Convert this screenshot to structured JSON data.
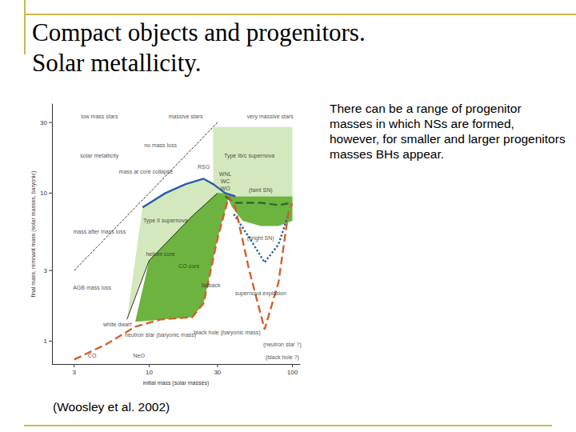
{
  "chart_data": {
    "type": "line",
    "title": "Compact objects and progenitors.\nSolar metallicity.",
    "subtitle": "There can be a range of progenitor masses in which NSs are formed, however, for smaller and larger progenitors masses BHs appear.",
    "source": "(Woosley et al. 2002)",
    "xlabel": "initial mass (solar masses)",
    "ylabel": "final mass, remnant mass (solar masses, baryonic)",
    "log": true,
    "grid": false,
    "xlim": [
      2.1,
      113
    ],
    "ylim": [
      0.7,
      40
    ],
    "xticks": [
      3,
      10,
      30,
      100
    ],
    "yticks": [
      1,
      3,
      10,
      30
    ],
    "series": [
      {
        "type": "area",
        "color": "#d3e8bd",
        "x": [
          7,
          10,
          20,
          30,
          34,
          28,
          24,
          18,
          13,
          9
        ],
        "values": [
          1.4,
          3.5,
          7,
          10,
          10,
          11.5,
          12.5,
          11.5,
          10,
          8
        ]
      },
      {
        "type": "area",
        "color": "#d3e8bd",
        "x": [
          28,
          34,
          40,
          100,
          100,
          28
        ],
        "values": [
          11.5,
          10,
          9.5,
          9.5,
          28,
          28
        ]
      },
      {
        "type": "area",
        "color": "#6db33f",
        "x": [
          8,
          20,
          24,
          30,
          36,
          34,
          30,
          20,
          10
        ],
        "values": [
          1.35,
          1.45,
          1.8,
          4.9,
          9.5,
          10,
          10,
          7,
          3.5
        ]
      },
      {
        "type": "area",
        "color": "#6db33f",
        "x": [
          34,
          40,
          60,
          80,
          100,
          100,
          80,
          60,
          45,
          38
        ],
        "values": [
          10,
          9.5,
          9.5,
          9.5,
          9.5,
          6.5,
          6,
          6,
          6.5,
          8
        ]
      },
      {
        "type": "line",
        "color": "#000000",
        "line_style": "dashed",
        "x": [
          3,
          30
        ],
        "values": [
          3,
          30
        ]
      },
      {
        "type": "line",
        "color": "#000000",
        "line_style": "solid",
        "x": [
          7,
          10,
          20,
          30
        ],
        "values": [
          1.4,
          3.5,
          7,
          10
        ]
      },
      {
        "type": "line",
        "color": "#2a5ea8",
        "line_style": "solid",
        "x": [
          9,
          13,
          18,
          24,
          28,
          34,
          40
        ],
        "values": [
          8,
          10,
          11.5,
          12.5,
          11.5,
          10,
          9.5
        ]
      },
      {
        "type": "line",
        "color": "#2e6b2e",
        "line_style": "dashed",
        "x": [
          34,
          40,
          60,
          80,
          100
        ],
        "values": [
          9.5,
          8.6,
          8.6,
          8.3,
          8.6
        ]
      },
      {
        "type": "line",
        "color": "#2a5ea8",
        "line_style": "dotted",
        "x": [
          39,
          50,
          64,
          80,
          94
        ],
        "values": [
          7.2,
          5,
          3.4,
          4.5,
          7.2
        ]
      },
      {
        "type": "line",
        "color": "#d2602a",
        "line_style": "dashed",
        "x": [
          3,
          5,
          8,
          12,
          20,
          24,
          30,
          36,
          40,
          50,
          64,
          80,
          94,
          100
        ],
        "values": [
          0.75,
          0.95,
          1.25,
          1.4,
          1.45,
          1.8,
          4.9,
          9.5,
          8,
          3,
          1.2,
          2.5,
          7.5,
          8.5
        ]
      }
    ],
    "annotations": [
      {
        "text": "low mass stars",
        "x": 4.5,
        "y": 33
      },
      {
        "text": "massive stars",
        "x": 18,
        "y": 33
      },
      {
        "text": "very massive stars",
        "x": 70,
        "y": 33
      },
      {
        "text": "solar metallicity",
        "x": 4.5,
        "y": 18
      },
      {
        "text": "Type Ib/c supernova",
        "x": 50,
        "y": 18
      },
      {
        "text": "no mass loss",
        "x": 12,
        "y": 21
      },
      {
        "text": "RSG",
        "x": 24,
        "y": 15
      },
      {
        "text": "mass at core collapse",
        "x": 9.5,
        "y": 14
      },
      {
        "text": "mass after mass loss",
        "x": 4.5,
        "y": 5.5
      },
      {
        "text": "Type II supernova",
        "x": 13,
        "y": 6.5
      },
      {
        "text": "AGB mass loss",
        "x": 4,
        "y": 2.3
      },
      {
        "text": "helium core",
        "x": 12,
        "y": 3.9
      },
      {
        "text": "CO core",
        "x": 19,
        "y": 3.2
      },
      {
        "text": "fallback",
        "x": 27,
        "y": 2.4
      },
      {
        "text": "neutron star (baryonic mass)",
        "x": 12,
        "y": 1.1
      },
      {
        "text": "black hole (baryonic mass)",
        "x": 35,
        "y": 1.15
      },
      {
        "text": "white dwarf",
        "x": 6,
        "y": 1.3
      },
      {
        "text": "CO",
        "x": 4,
        "y": 0.8
      },
      {
        "text": "NeO",
        "x": 8.5,
        "y": 0.8
      },
      {
        "text": "WNL",
        "x": 34,
        "y": 13.5
      },
      {
        "text": "WC",
        "x": 34,
        "y": 12
      },
      {
        "text": "WO",
        "x": 34,
        "y": 10.7
      },
      {
        "text": "(faint SN)",
        "x": 60,
        "y": 10.5
      },
      {
        "text": "(bright SN)",
        "x": 60,
        "y": 5
      },
      {
        "text": "supernova explosion",
        "x": 60,
        "y": 2.1
      },
      {
        "text": "(neutron star ?)",
        "x": 85,
        "y": 0.95
      },
      {
        "text": "(black hole ?)",
        "x": 85,
        "y": 0.78
      }
    ]
  }
}
